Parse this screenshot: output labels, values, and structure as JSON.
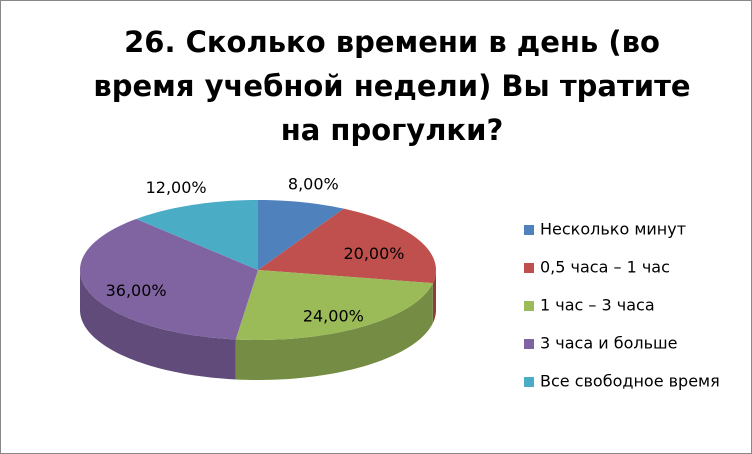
{
  "chart_data": {
    "type": "pie3d",
    "title": "26. Сколько времени в день (во время учебной недели) Вы тратите на прогулки?",
    "categories": [
      "Несколько минут",
      "0,5 часа – 1 час",
      "1 час – 3 часа",
      "3 часа и больше",
      "Все свободное время"
    ],
    "values": [
      8,
      20,
      24,
      36,
      12
    ],
    "value_labels": [
      "8,00%",
      "20,00%",
      "24,00%",
      "36,00%",
      "12,00%"
    ],
    "colors": [
      "#4f81bd",
      "#c0504d",
      "#9bbb59",
      "#8064a2",
      "#4bacc6"
    ],
    "legend": "right"
  }
}
